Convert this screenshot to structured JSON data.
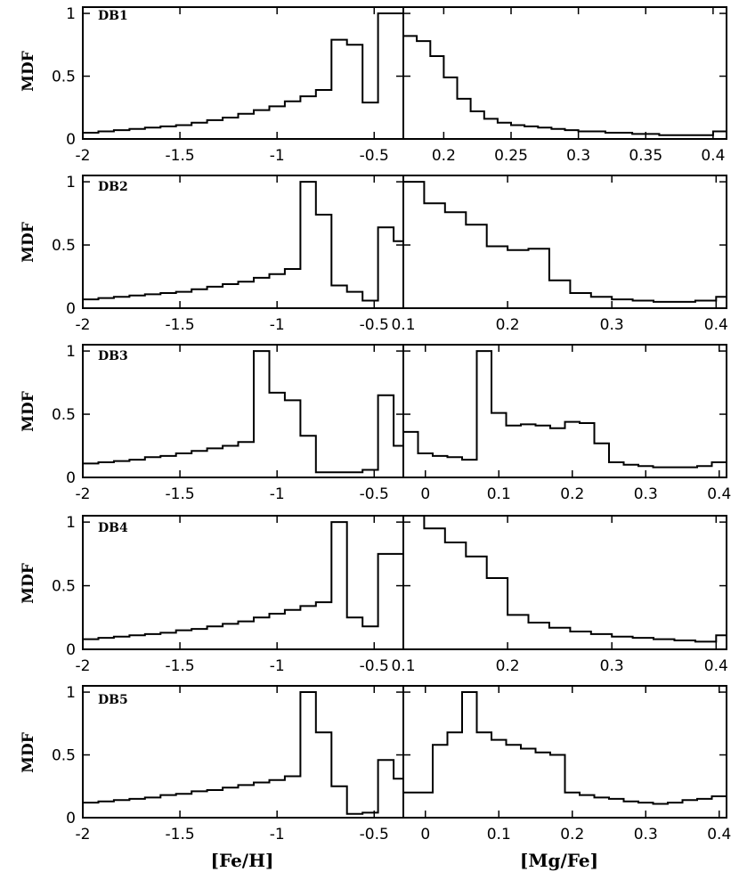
{
  "chart_data": [
    {
      "type": "line",
      "step": "histogram",
      "panel": "DB1",
      "variable": "[Fe/H]",
      "ylabel": "MDF",
      "xlim": [
        -2,
        -0.35
      ],
      "ylim": [
        0,
        1.05
      ],
      "x_ticks": [
        -2,
        -1.5,
        -1,
        -0.5
      ],
      "x_tick_labels": [
        "-2",
        "-1.5",
        "-1",
        "-0.5"
      ],
      "y_ticks": [
        0,
        0.5,
        1
      ],
      "y_tick_labels": [
        "0",
        "0.5",
        "1"
      ],
      "edges": [
        -2,
        -1.92,
        -1.84,
        -1.76,
        -1.68,
        -1.6,
        -1.52,
        -1.44,
        -1.36,
        -1.28,
        -1.2,
        -1.12,
        -1.04,
        -0.96,
        -0.88,
        -0.8,
        -0.72,
        -0.64,
        -0.56,
        -0.48,
        -0.4,
        -0.35
      ],
      "values": [
        0.05,
        0.06,
        0.07,
        0.08,
        0.09,
        0.1,
        0.11,
        0.13,
        0.15,
        0.17,
        0.2,
        0.23,
        0.26,
        0.3,
        0.34,
        0.39,
        0.79,
        0.75,
        0.29,
        1.0,
        1.0
      ]
    },
    {
      "type": "line",
      "step": "histogram",
      "panel": "DB1",
      "variable": "[Mg/Fe]",
      "xlim": [
        0.17,
        0.41
      ],
      "ylim": [
        0,
        1.05
      ],
      "x_ticks": [
        0.2,
        0.25,
        0.3,
        0.35,
        0.4
      ],
      "x_tick_labels": [
        "0.2",
        "0.25",
        "0.3",
        "0.35",
        "0.4"
      ],
      "edges": [
        0.17,
        0.18,
        0.19,
        0.2,
        0.21,
        0.22,
        0.23,
        0.24,
        0.25,
        0.26,
        0.27,
        0.28,
        0.29,
        0.3,
        0.31,
        0.32,
        0.33,
        0.34,
        0.35,
        0.36,
        0.37,
        0.38,
        0.39,
        0.4,
        0.41
      ],
      "values": [
        0.82,
        0.78,
        0.66,
        0.49,
        0.32,
        0.22,
        0.16,
        0.13,
        0.11,
        0.1,
        0.09,
        0.08,
        0.07,
        0.06,
        0.06,
        0.05,
        0.05,
        0.04,
        0.04,
        0.03,
        0.03,
        0.03,
        0.03,
        0.06
      ]
    },
    {
      "type": "line",
      "step": "histogram",
      "panel": "DB2",
      "variable": "[Fe/H]",
      "ylabel": "MDF",
      "xlim": [
        -2,
        -0.35
      ],
      "ylim": [
        0,
        1.05
      ],
      "x_ticks": [
        -2,
        -1.5,
        -1,
        -0.5
      ],
      "x_tick_labels": [
        "-2",
        "-1.5",
        "-1",
        "-0.5"
      ],
      "y_ticks": [
        0,
        0.5,
        1
      ],
      "y_tick_labels": [
        "0",
        "0.5",
        "1"
      ],
      "edges": [
        -2,
        -1.92,
        -1.84,
        -1.76,
        -1.68,
        -1.6,
        -1.52,
        -1.44,
        -1.36,
        -1.28,
        -1.2,
        -1.12,
        -1.04,
        -0.96,
        -0.88,
        -0.8,
        -0.72,
        -0.64,
        -0.56,
        -0.48,
        -0.4,
        -0.35
      ],
      "values": [
        0.07,
        0.08,
        0.09,
        0.1,
        0.11,
        0.12,
        0.13,
        0.15,
        0.17,
        0.19,
        0.21,
        0.24,
        0.27,
        0.31,
        1.0,
        0.74,
        0.18,
        0.13,
        0.06,
        0.64,
        0.53
      ]
    },
    {
      "type": "line",
      "step": "histogram",
      "panel": "DB2",
      "variable": "[Mg/Fe]",
      "xlim": [
        0.1,
        0.41
      ],
      "ylim": [
        0,
        1.05
      ],
      "x_ticks": [
        0.1,
        0.2,
        0.3,
        0.4
      ],
      "x_tick_labels": [
        "0.1",
        "0.2",
        "0.3",
        "0.4"
      ],
      "edges": [
        0.1,
        0.12,
        0.14,
        0.16,
        0.18,
        0.2,
        0.22,
        0.24,
        0.26,
        0.28,
        0.3,
        0.32,
        0.34,
        0.36,
        0.38,
        0.4,
        0.41
      ],
      "values": [
        1.0,
        0.83,
        0.76,
        0.66,
        0.49,
        0.46,
        0.47,
        0.22,
        0.12,
        0.09,
        0.07,
        0.06,
        0.05,
        0.05,
        0.06,
        0.09
      ]
    },
    {
      "type": "line",
      "step": "histogram",
      "panel": "DB3",
      "variable": "[Fe/H]",
      "ylabel": "MDF",
      "xlim": [
        -2,
        -0.35
      ],
      "ylim": [
        0,
        1.05
      ],
      "x_ticks": [
        -2,
        -1.5,
        -1,
        -0.5
      ],
      "x_tick_labels": [
        "-2",
        "-1.5",
        "-1",
        "-0.5"
      ],
      "y_ticks": [
        0,
        0.5,
        1
      ],
      "y_tick_labels": [
        "0",
        "0.5",
        "1"
      ],
      "edges": [
        -2,
        -1.92,
        -1.84,
        -1.76,
        -1.68,
        -1.6,
        -1.52,
        -1.44,
        -1.36,
        -1.28,
        -1.2,
        -1.12,
        -1.04,
        -0.96,
        -0.88,
        -0.8,
        -0.72,
        -0.64,
        -0.56,
        -0.48,
        -0.4,
        -0.35
      ],
      "values": [
        0.11,
        0.12,
        0.13,
        0.14,
        0.16,
        0.17,
        0.19,
        0.21,
        0.23,
        0.25,
        0.28,
        1.0,
        0.67,
        0.61,
        0.33,
        0.04,
        0.04,
        0.04,
        0.06,
        0.65,
        0.25
      ]
    },
    {
      "type": "line",
      "step": "histogram",
      "panel": "DB3",
      "variable": "[Mg/Fe]",
      "xlim": [
        -0.03,
        0.41
      ],
      "ylim": [
        0,
        1.05
      ],
      "x_ticks": [
        0,
        0.1,
        0.2,
        0.3,
        0.4
      ],
      "x_tick_labels": [
        "0",
        "0.1",
        "0.2",
        "0.3",
        "0.4"
      ],
      "edges": [
        -0.03,
        -0.01,
        0.01,
        0.03,
        0.05,
        0.07,
        0.09,
        0.11,
        0.13,
        0.15,
        0.17,
        0.19,
        0.21,
        0.23,
        0.25,
        0.27,
        0.29,
        0.31,
        0.33,
        0.35,
        0.37,
        0.39,
        0.41
      ],
      "values": [
        0.36,
        0.19,
        0.17,
        0.16,
        0.14,
        1.0,
        0.51,
        0.41,
        0.42,
        0.41,
        0.39,
        0.44,
        0.43,
        0.27,
        0.12,
        0.1,
        0.09,
        0.08,
        0.08,
        0.08,
        0.09,
        0.12
      ]
    },
    {
      "type": "line",
      "step": "histogram",
      "panel": "DB4",
      "variable": "[Fe/H]",
      "ylabel": "MDF",
      "xlim": [
        -2,
        -0.35
      ],
      "ylim": [
        0,
        1.05
      ],
      "x_ticks": [
        -2,
        -1.5,
        -1,
        -0.5
      ],
      "x_tick_labels": [
        "-2",
        "-1.5",
        "-1",
        "-0.5"
      ],
      "y_ticks": [
        0,
        0.5,
        1
      ],
      "y_tick_labels": [
        "0",
        "0.5",
        "1"
      ],
      "edges": [
        -2,
        -1.92,
        -1.84,
        -1.76,
        -1.68,
        -1.6,
        -1.52,
        -1.44,
        -1.36,
        -1.28,
        -1.2,
        -1.12,
        -1.04,
        -0.96,
        -0.88,
        -0.8,
        -0.72,
        -0.64,
        -0.56,
        -0.48,
        -0.4,
        -0.35
      ],
      "values": [
        0.08,
        0.09,
        0.1,
        0.11,
        0.12,
        0.13,
        0.15,
        0.16,
        0.18,
        0.2,
        0.22,
        0.25,
        0.28,
        0.31,
        0.34,
        0.37,
        1.0,
        0.25,
        0.18,
        0.75,
        0.75
      ]
    },
    {
      "type": "line",
      "step": "histogram",
      "panel": "DB4",
      "variable": "[Mg/Fe]",
      "xlim": [
        0.1,
        0.41
      ],
      "ylim": [
        0,
        1.05
      ],
      "x_ticks": [
        0.1,
        0.2,
        0.3,
        0.4
      ],
      "x_tick_labels": [
        "0.1",
        "0.2",
        "0.3",
        "0.4"
      ],
      "edges": [
        0.1,
        0.12,
        0.14,
        0.16,
        0.18,
        0.2,
        0.22,
        0.24,
        0.26,
        0.28,
        0.3,
        0.32,
        0.34,
        0.36,
        0.38,
        0.4,
        0.41
      ],
      "values": [
        1.05,
        0.95,
        0.84,
        0.73,
        0.56,
        0.27,
        0.21,
        0.17,
        0.14,
        0.12,
        0.1,
        0.09,
        0.08,
        0.07,
        0.06,
        0.11
      ]
    },
    {
      "type": "line",
      "step": "histogram",
      "panel": "DB5",
      "variable": "[Fe/H]",
      "ylabel": "MDF",
      "xlabel": "[Fe/H]",
      "xlim": [
        -2,
        -0.35
      ],
      "ylim": [
        0,
        1.05
      ],
      "x_ticks": [
        -2,
        -1.5,
        -1,
        -0.5
      ],
      "x_tick_labels": [
        "-2",
        "-1.5",
        "-1",
        "-0.5"
      ],
      "y_ticks": [
        0,
        0.5,
        1
      ],
      "y_tick_labels": [
        "0",
        "0.5",
        "1"
      ],
      "edges": [
        -2,
        -1.92,
        -1.84,
        -1.76,
        -1.68,
        -1.6,
        -1.52,
        -1.44,
        -1.36,
        -1.28,
        -1.2,
        -1.12,
        -1.04,
        -0.96,
        -0.88,
        -0.8,
        -0.72,
        -0.64,
        -0.56,
        -0.48,
        -0.4,
        -0.35
      ],
      "values": [
        0.12,
        0.13,
        0.14,
        0.15,
        0.16,
        0.18,
        0.19,
        0.21,
        0.22,
        0.24,
        0.26,
        0.28,
        0.3,
        0.33,
        1.0,
        0.68,
        0.25,
        0.03,
        0.04,
        0.46,
        0.31
      ]
    },
    {
      "type": "line",
      "step": "histogram",
      "panel": "DB5",
      "variable": "[Mg/Fe]",
      "xlabel": "[Mg/Fe]",
      "xlim": [
        -0.03,
        0.41
      ],
      "ylim": [
        0,
        1.05
      ],
      "x_ticks": [
        0,
        0.1,
        0.2,
        0.3,
        0.4
      ],
      "x_tick_labels": [
        "0",
        "0.1",
        "0.2",
        "0.3",
        "0.4"
      ],
      "edges": [
        -0.03,
        -0.01,
        0.01,
        0.03,
        0.05,
        0.07,
        0.09,
        0.11,
        0.13,
        0.15,
        0.17,
        0.19,
        0.21,
        0.23,
        0.25,
        0.27,
        0.29,
        0.31,
        0.33,
        0.35,
        0.37,
        0.39,
        0.41
      ],
      "values": [
        0.2,
        0.2,
        0.58,
        0.68,
        1.0,
        0.68,
        0.62,
        0.58,
        0.55,
        0.52,
        0.5,
        0.2,
        0.18,
        0.16,
        0.15,
        0.13,
        0.12,
        0.11,
        0.12,
        0.14,
        0.15,
        0.17
      ]
    }
  ],
  "panel_labels": [
    "DB1",
    "DB2",
    "DB3",
    "DB4",
    "DB5"
  ],
  "y_axis_label": "MDF",
  "x_axis_labels": {
    "left": "[Fe/H]",
    "right": "[Mg/Fe]"
  },
  "colors": {
    "line": "#000000",
    "background": "#ffffff"
  }
}
